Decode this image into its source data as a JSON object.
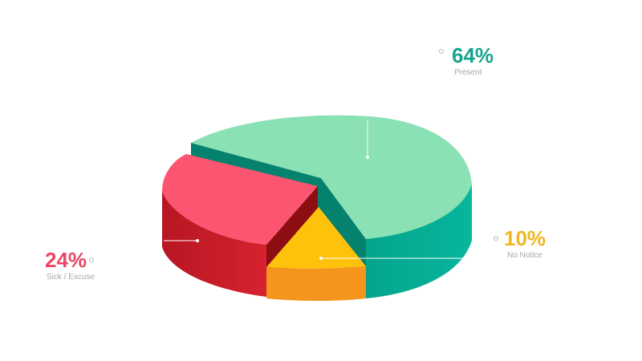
{
  "chart_data": {
    "type": "pie",
    "categories": [
      "Present",
      "Sick / Excuse",
      "No Notice"
    ],
    "values": [
      64,
      24,
      10
    ],
    "value_labels": [
      "64%",
      "24%",
      "10%"
    ],
    "colors": {
      "Present": "#8ae1b3",
      "Sick / Excuse": "#fc5571",
      "No Notice": "#fec10c"
    },
    "side_colors": {
      "Present": "#05ad95",
      "Sick / Excuse": "#cb1d29",
      "No Notice": "#f5951d"
    },
    "label_colors": {
      "Present": "#17a38f",
      "Sick / Excuse": "#ea4764",
      "No Notice": "#f0b721"
    },
    "style": "3d-exploded"
  }
}
